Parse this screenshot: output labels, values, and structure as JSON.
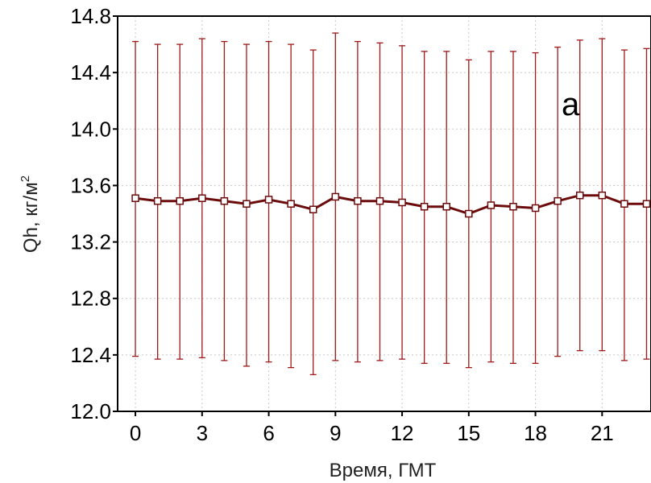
{
  "chart_data": {
    "type": "line",
    "title": "",
    "annotation": "a",
    "xlabel": "Время, ГМТ",
    "ylabel": "Qh, кг/м",
    "ylabel_sup": "2",
    "xlim": [
      -0.8,
      23.2
    ],
    "ylim": [
      12.0,
      14.8
    ],
    "x_ticks": [
      0,
      3,
      6,
      9,
      12,
      15,
      18,
      21
    ],
    "y_ticks": [
      "12.0",
      "12.4",
      "12.8",
      "13.2",
      "13.6",
      "14.0",
      "14.4",
      "14.8"
    ],
    "grid": true,
    "series": [
      {
        "x": [
          0,
          1,
          2,
          3,
          4,
          5,
          6,
          7,
          8,
          9,
          10,
          11,
          12,
          13,
          14,
          15,
          16,
          17,
          18,
          19,
          20,
          21,
          22,
          23
        ],
        "values": [
          13.51,
          13.49,
          13.49,
          13.51,
          13.49,
          13.47,
          13.5,
          13.47,
          13.43,
          13.52,
          13.49,
          13.49,
          13.48,
          13.45,
          13.45,
          13.4,
          13.46,
          13.45,
          13.44,
          13.49,
          13.53,
          13.53,
          13.47,
          13.47
        ],
        "upper": [
          14.62,
          14.6,
          14.6,
          14.64,
          14.62,
          14.6,
          14.62,
          14.6,
          14.56,
          14.68,
          14.62,
          14.61,
          14.59,
          14.55,
          14.55,
          14.49,
          14.55,
          14.55,
          14.54,
          14.58,
          14.63,
          14.64,
          14.56,
          14.57
        ],
        "lower": [
          12.39,
          12.37,
          12.37,
          12.38,
          12.36,
          12.32,
          12.35,
          12.31,
          12.26,
          12.36,
          12.35,
          12.36,
          12.37,
          12.34,
          12.34,
          12.31,
          12.35,
          12.34,
          12.34,
          12.39,
          12.43,
          12.43,
          12.36,
          12.37
        ]
      }
    ],
    "colors": {
      "line": "#6b0b0b",
      "errorbar": "#a01818",
      "grid": "#c8c8c8"
    }
  }
}
